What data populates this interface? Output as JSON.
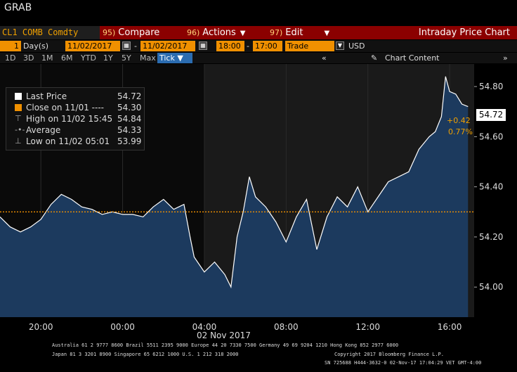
{
  "function_name": "GRAB",
  "command_bar": {
    "ticker": "CL1 COMB Comdty",
    "compare": {
      "num": "95)",
      "label": "Compare"
    },
    "actions": {
      "num": "96)",
      "label": "Actions"
    },
    "edit": {
      "num": "97)",
      "label": "Edit"
    },
    "title": "Intraday Price Chart"
  },
  "range_bar": {
    "days": "1",
    "days_unit": "Day(s)",
    "start_date": "11/02/2017",
    "end_date": "11/02/2017",
    "start_time": "18:00",
    "end_time": "17:00",
    "event": "Trade",
    "currency": "USD"
  },
  "periods": [
    "1D",
    "3D",
    "1M",
    "6M",
    "YTD",
    "1Y",
    "5Y",
    "Max"
  ],
  "tick_selector": "Tick",
  "chart_content_label": "Chart Content",
  "legend": {
    "last_price": {
      "label": "Last Price",
      "value": "54.72"
    },
    "close": {
      "label": "Close on 11/01 ----",
      "value": "54.30"
    },
    "high": {
      "label": "High on 11/02 15:45",
      "value": "54.84"
    },
    "average": {
      "label": "Average",
      "value": "54.33"
    },
    "low": {
      "label": "Low on 11/02 05:01",
      "value": "53.99"
    }
  },
  "last_value_label": "54.72",
  "change": {
    "abs": "+0.42",
    "pct": "0.77%"
  },
  "date_label": "02 Nov 2017",
  "footer": {
    "line1": "Australia 61 2 9777 8600 Brazil 5511 2395 9000 Europe 44 20 7330 7500 Germany 49 69 9204 1210 Hong Kong 852 2977 6000",
    "line2a": "Japan 81 3 3201 8900          Singapore 65 6212 1000        U.S. 1 212 318 2000",
    "line2b": "Copyright 2017 Bloomberg Finance L.P.",
    "line3": "SN 725688 H444-3632-0 02-Nov-17 17:04:29 VET  GMT-4:00"
  },
  "colors": {
    "accent": "#f09000",
    "command_bar": "#8b0000",
    "area_fill": "#1c3a5e",
    "line": "#ffffff"
  },
  "chart_data": {
    "type": "area",
    "ylim": [
      53.88,
      54.89
    ],
    "y_ticks": [
      54.0,
      54.2,
      54.4,
      54.6,
      54.8
    ],
    "y_tick_labels": [
      "54.00",
      "54.20",
      "54.40",
      "54.60",
      "54.80"
    ],
    "x_ticks": [
      20,
      24,
      28,
      32,
      36,
      40
    ],
    "x_tick_labels": [
      "20:00",
      "00:00",
      "04:00",
      "08:00",
      "12:00",
      "16:00"
    ],
    "x_unit": "hours since 00:00 on 11/01",
    "xlim": [
      18,
      41.2
    ],
    "close_line": 54.3,
    "shaded_from": 28,
    "x": [
      18,
      18.5,
      19,
      19.5,
      20,
      20.5,
      21,
      21.5,
      22,
      22.5,
      23,
      23.5,
      24,
      24.5,
      25,
      25.5,
      26,
      26.5,
      27,
      27.3,
      27.5,
      28,
      28.5,
      29,
      29.3,
      29.6,
      29.9,
      30.2,
      30.5,
      31,
      31.5,
      32,
      32.5,
      33,
      33.5,
      34,
      34.5,
      35,
      35.5,
      36,
      36.5,
      37,
      37.5,
      38,
      38.5,
      38.8,
      39,
      39.3,
      39.6,
      39.8,
      40,
      40.3,
      40.6,
      40.9
    ],
    "y": [
      54.28,
      54.24,
      54.22,
      54.24,
      54.27,
      54.33,
      54.37,
      54.35,
      54.32,
      54.31,
      54.29,
      54.3,
      54.29,
      54.29,
      54.28,
      54.32,
      54.35,
      54.31,
      54.33,
      54.2,
      54.12,
      54.06,
      54.1,
      54.05,
      54.0,
      54.2,
      54.3,
      54.44,
      54.36,
      54.32,
      54.26,
      54.18,
      54.28,
      54.35,
      54.15,
      54.28,
      54.36,
      54.32,
      54.4,
      54.3,
      54.36,
      54.42,
      54.44,
      54.46,
      54.55,
      54.58,
      54.6,
      54.62,
      54.68,
      54.84,
      54.78,
      54.77,
      54.73,
      54.72
    ]
  }
}
